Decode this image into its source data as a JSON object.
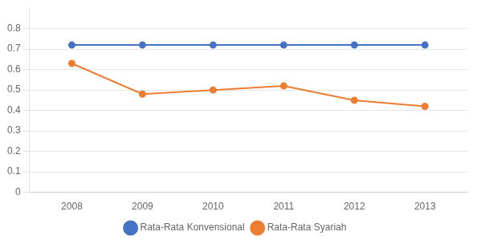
{
  "chart_data": {
    "type": "line",
    "x": [
      2008,
      2009,
      2010,
      2011,
      2012,
      2013
    ],
    "series": [
      {
        "name": "Rata-Rata Konvensional",
        "color": "#4472C4",
        "values": [
          0.72,
          0.72,
          0.72,
          0.72,
          0.72,
          0.72
        ]
      },
      {
        "name": "Rata-Rata Syariah",
        "color": "#ED7D31",
        "values": [
          0.63,
          0.48,
          0.5,
          0.52,
          0.45,
          0.42
        ]
      }
    ],
    "xlim": [
      2007.4,
      2013.6
    ],
    "xticks": [
      2008,
      2009,
      2010,
      2011,
      2012,
      2013
    ],
    "ylim": [
      0,
      0.9
    ],
    "yticks": [
      0,
      0.1,
      0.2,
      0.3,
      0.4,
      0.5,
      0.6,
      0.7,
      0.8
    ],
    "grid": "y",
    "legend": "bottom",
    "marker": "circle"
  }
}
